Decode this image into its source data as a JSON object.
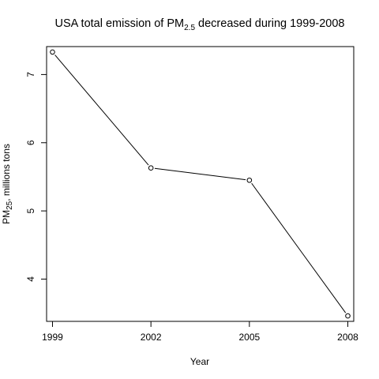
{
  "chart_data": {
    "type": "line",
    "title": {
      "prefix": "USA total emission of PM",
      "subscript": "2.5",
      "suffix": " decreased during 1999-2008"
    },
    "xlabel": "Year",
    "ylabel": {
      "prefix": "PM",
      "subscript": "25",
      "suffix": ", millions tons"
    },
    "x": [
      1999,
      2002,
      2005,
      2008
    ],
    "values": [
      7.33,
      5.63,
      5.45,
      3.46
    ],
    "x_ticks": [
      "1999",
      "2002",
      "2005",
      "2008"
    ],
    "y_ticks": [
      "4",
      "5",
      "6",
      "7"
    ],
    "xlim": [
      1998.82,
      2008.18
    ],
    "ylim": [
      3.38,
      7.41
    ],
    "grid": false,
    "marker": "open-circle",
    "line_color": "#000000"
  }
}
